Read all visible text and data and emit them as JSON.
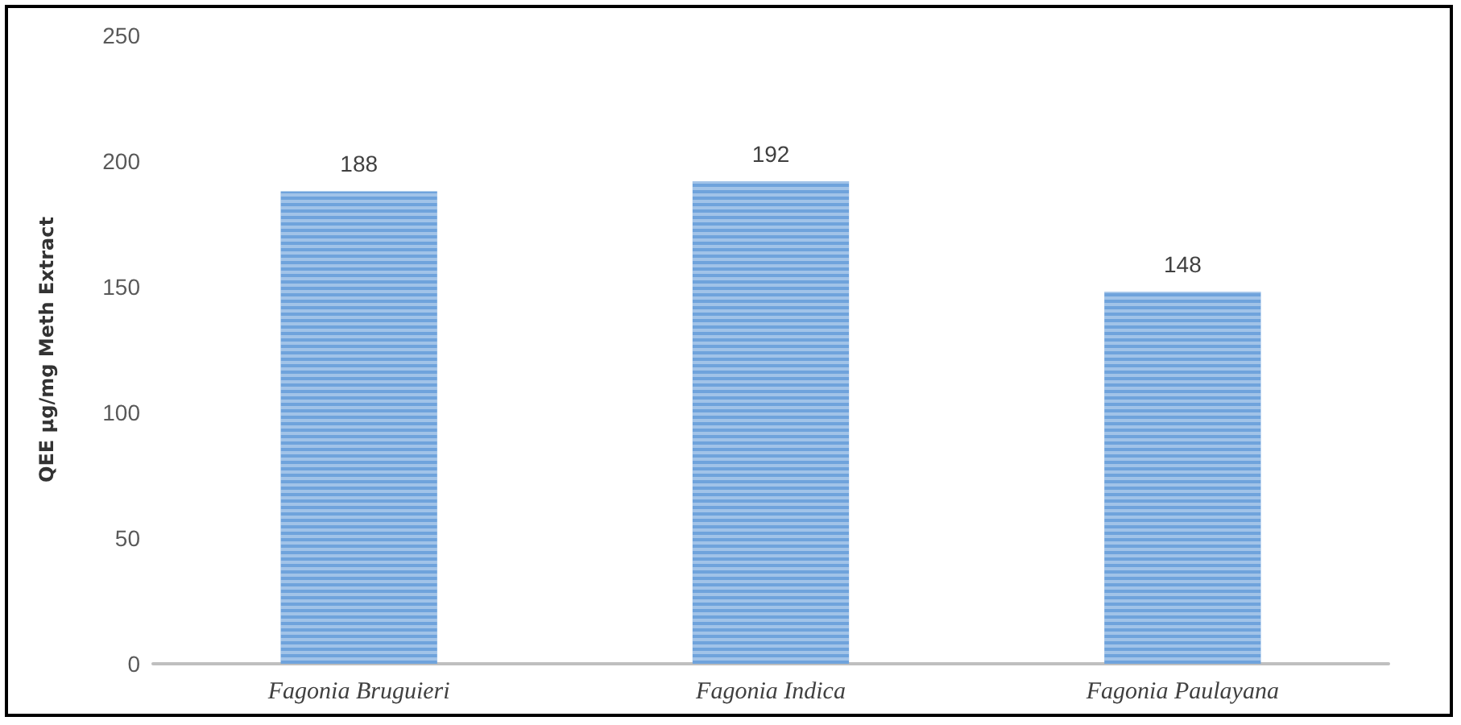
{
  "chart_data": {
    "type": "bar",
    "ylabel": "QEE µg/mg Meth Extract",
    "categories": [
      "Fagonia Bruguieri",
      "Fagonia Indica",
      "Fagonia Paulayana"
    ],
    "values": [
      188,
      192,
      148
    ],
    "color": "#6fa3dc",
    "ylim": [
      0,
      250
    ],
    "yticks": [
      0,
      50,
      100,
      150,
      200,
      250
    ],
    "grid": false,
    "data_labels": true
  }
}
